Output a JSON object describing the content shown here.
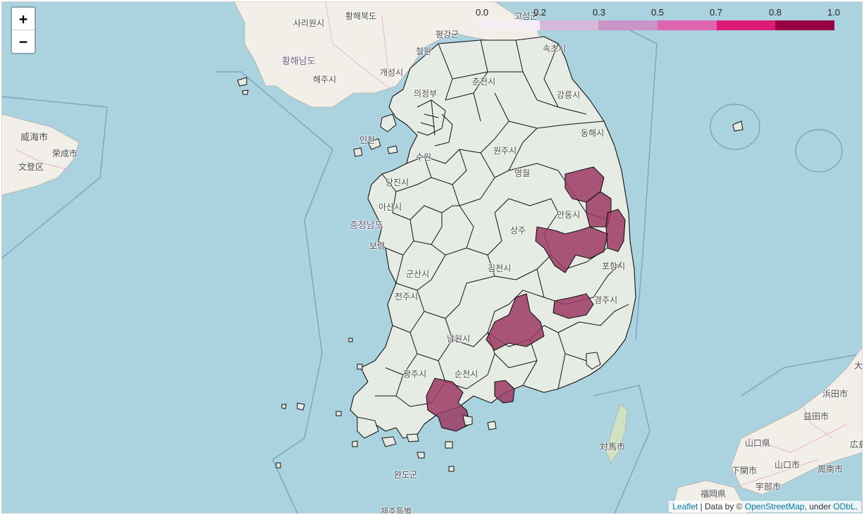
{
  "zoom": {
    "in_label": "+",
    "out_label": "−"
  },
  "legend": {
    "ticks": [
      "0.0",
      "0.2",
      "0.3",
      "0.5",
      "0.7",
      "0.8",
      "1.0"
    ],
    "colors": [
      "#f1eef6",
      "#d4b9da",
      "#c994c7",
      "#df65b0",
      "#dd1c77",
      "#980043"
    ]
  },
  "choropleth": {
    "fill_low": "#e6ece4",
    "fill_high": "#9b3a64",
    "stroke": "#111111"
  },
  "labels": {
    "hwanghae_north": "황해북도",
    "sariwon": "사리원시",
    "pyeonggang": "평강군",
    "cheorwon": "철원",
    "goseong": "고성군",
    "sokcho": "속초시",
    "hwanghae_south": "황해남도",
    "haeju": "해주시",
    "kaesong": "개성시",
    "uijeongbu": "의정부",
    "chuncheon": "춘천시",
    "gangneung": "강릉시",
    "weihai": "威海市",
    "rongcheng": "荣成市",
    "wendeng": "文登区",
    "incheon": "인천",
    "suwon": "수원",
    "donghae": "동해시",
    "wonju": "원주시",
    "yeongwol": "영월",
    "dangjin": "당진시",
    "asan": "아산시",
    "chungnam": "충청남도",
    "boryeong": "보령",
    "sangju": "상주",
    "andong": "안동시",
    "gimcheon": "김천시",
    "gunsan": "군산시",
    "pohang": "포항시",
    "jeonju": "전주시",
    "gyeongju": "경주시",
    "namwon": "남원시",
    "suncheon": "순천시",
    "gwangju": "광주시",
    "wando": "완도군",
    "jeju": "제주특별",
    "tsushima": "対馬市",
    "hamada": "浜田市",
    "masuda": "益田市",
    "yamaguchi_pref": "山口県",
    "yamaguchi": "山口市",
    "shimonoseki": "下関市",
    "shunan": "周南市",
    "ube": "宇部市",
    "fukuoka": "福岡県",
    "hiro": "広島",
    "dai": "大"
  },
  "attribution": {
    "leaflet": "Leaflet",
    "sep": " | Data by © ",
    "osm": "OpenStreetMap",
    "under": ", under ",
    "odbl": "ODbL",
    "end": "."
  }
}
